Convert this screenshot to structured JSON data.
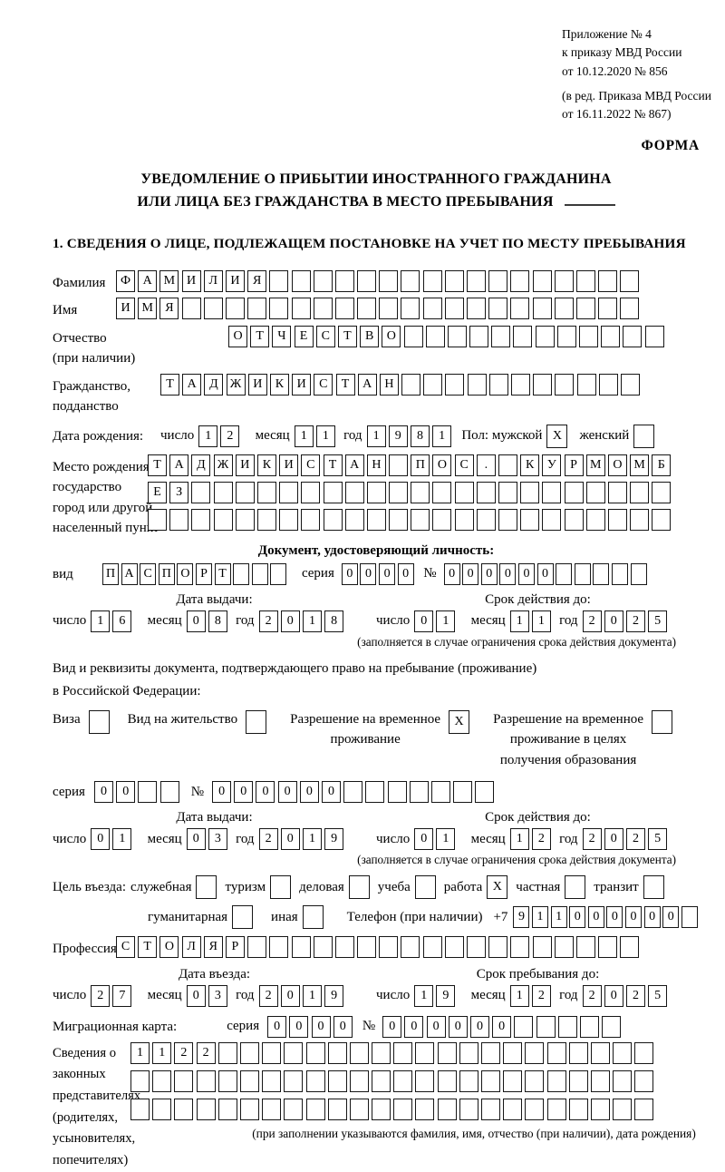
{
  "meta": {
    "annex": [
      "Приложение № 4",
      "к приказу МВД России",
      "от 10.12.2020 № 856"
    ],
    "annex_edit": [
      "(в ред. Приказа МВД России",
      "от 16.11.2022 № 867)"
    ],
    "form_word": "ФОРМА"
  },
  "title": {
    "line1": "УВЕДОМЛЕНИЕ О ПРИБЫТИИ ИНОСТРАННОГО ГРАЖДАНИНА",
    "line2": "ИЛИ ЛИЦА БЕЗ ГРАЖДАНСТВА В МЕСТО ПРЕБЫВАНИЯ"
  },
  "common": {
    "day_label": "число",
    "month_label": "месяц",
    "year_label": "год"
  },
  "section1": {
    "heading": "1. СВЕДЕНИЯ О ЛИЦЕ, ПОДЛЕЖАЩЕМ ПОСТАНОВКЕ НА УЧЕТ ПО МЕСТУ ПРЕБЫВАНИЯ"
  },
  "fields": {
    "surname": {
      "label": "Фамилия",
      "cells": {
        "t": "ФАМИЛИЯ",
        "n": 24
      }
    },
    "firstname": {
      "label": "Имя",
      "cells": {
        "t": "ИМЯ",
        "n": 24
      }
    },
    "patronymic": {
      "label": "Отчество",
      "note": "(при наличии)",
      "cells": {
        "t": "ОТЧЕСТВО",
        "n": 20
      }
    },
    "citizenship": {
      "label1": "Гражданство,",
      "label2": "подданство",
      "cells": {
        "t": "ТАДЖИКИСТАН",
        "n": 22
      }
    },
    "birth": {
      "label": "Дата рождения:",
      "day": {
        "t": "12",
        "n": 2
      },
      "month": {
        "t": "11",
        "n": 2
      },
      "year": {
        "t": "1981",
        "n": 4
      },
      "sex_label": "Пол: мужской",
      "male_box": {
        "t": "X",
        "n": 1
      },
      "female_label": "женский",
      "female_box": {
        "t": "",
        "n": 1
      }
    },
    "birthplace": {
      "label1": "Место рождения:",
      "label2": "государство",
      "label3": "город или другой",
      "label4": "населенный пункт",
      "row1": {
        "t": "ТАДЖИКИСТАН ПОС. КУРМОМБ",
        "n": 24
      },
      "row2": {
        "t": "ЕЗ",
        "n": 24
      },
      "row3": {
        "t": "",
        "n": 24
      }
    }
  },
  "iddoc": {
    "heading": "Документ, удостоверяющий личность:",
    "type_label": "вид",
    "type": {
      "t": "ПАСПОРТ",
      "n": 10
    },
    "series_label": "серия",
    "series": {
      "t": "0000",
      "n": 4
    },
    "num_label": "№",
    "number": {
      "t": "000000",
      "n": 11
    },
    "issue_label": "Дата выдачи:",
    "issue": {
      "day": {
        "t": "16",
        "n": 2
      },
      "month": {
        "t": "08",
        "n": 2
      },
      "year": {
        "t": "2018",
        "n": 4
      }
    },
    "valid_label": "Срок действия до:",
    "valid": {
      "day": {
        "t": "01",
        "n": 2
      },
      "month": {
        "t": "11",
        "n": 2
      },
      "year": {
        "t": "2025",
        "n": 4
      }
    },
    "note": "(заполняется в случае ограничения срока действия документа)"
  },
  "permit": {
    "line1": "Вид и реквизиты документа, подтверждающего право на пребывание (проживание)",
    "line2": "в Российской Федерации:",
    "visa_label": "Виза",
    "visa_box": {
      "t": "",
      "n": 1
    },
    "residence_label": "Вид на жительство",
    "residence_box": {
      "t": "",
      "n": 1
    },
    "rvp_line1": "Разрешение на временное",
    "rvp_line2": "проживание",
    "rvp_box": {
      "t": "X",
      "n": 1
    },
    "edu_line1": "Разрешение на временное",
    "edu_line2": "проживание в целях",
    "edu_line3": "получения образования",
    "edu_box": {
      "t": "",
      "n": 1
    },
    "series_label": "серия",
    "series": {
      "t": "00",
      "n": 4
    },
    "num_label": "№",
    "number": {
      "t": "000000",
      "n": 13
    },
    "issue_label": "Дата выдачи:",
    "issue": {
      "day": {
        "t": "01",
        "n": 2
      },
      "month": {
        "t": "03",
        "n": 2
      },
      "year": {
        "t": "2019",
        "n": 4
      }
    },
    "valid_label": "Срок действия до:",
    "valid": {
      "day": {
        "t": "01",
        "n": 2
      },
      "month": {
        "t": "12",
        "n": 2
      },
      "year": {
        "t": "2025",
        "n": 4
      }
    },
    "note": "(заполняется в случае ограничения срока действия документа)"
  },
  "purpose": {
    "label": "Цель въезда:",
    "options": [
      {
        "label": "служебная",
        "box": {
          "t": "",
          "n": 1
        }
      },
      {
        "label": "туризм",
        "box": {
          "t": "",
          "n": 1
        }
      },
      {
        "label": "деловая",
        "box": {
          "t": "",
          "n": 1
        }
      },
      {
        "label": "учеба",
        "box": {
          "t": "",
          "n": 1
        }
      },
      {
        "label": "работа",
        "box": {
          "t": "X",
          "n": 1
        }
      },
      {
        "label": "частная",
        "box": {
          "t": "",
          "n": 1
        }
      },
      {
        "label": "транзит",
        "box": {
          "t": "",
          "n": 1
        }
      }
    ],
    "options2": [
      {
        "label": "гуманитарная",
        "box": {
          "t": "",
          "n": 1
        }
      },
      {
        "label": "иная",
        "box": {
          "t": "",
          "n": 1
        }
      }
    ],
    "phone_label": "Телефон (при наличии)",
    "phone_prefix": "+7",
    "phone": {
      "t": "911000000",
      "n": 10
    }
  },
  "profession": {
    "label": "Профессия",
    "cells": {
      "t": "СТОЛЯР",
      "n": 24
    }
  },
  "entry": {
    "date_label": "Дата въезда:",
    "date": {
      "day": {
        "t": "27",
        "n": 2
      },
      "month": {
        "t": "03",
        "n": 2
      },
      "year": {
        "t": "2019",
        "n": 4
      }
    },
    "until_label": "Срок пребывания до:",
    "until": {
      "day": {
        "t": "19",
        "n": 2
      },
      "month": {
        "t": "12",
        "n": 2
      },
      "year": {
        "t": "2025",
        "n": 4
      }
    }
  },
  "migcard": {
    "label": "Миграционная карта:",
    "series_label": "серия",
    "series": {
      "t": "0000",
      "n": 4
    },
    "num_label": "№",
    "number": {
      "t": "000000",
      "n": 11
    }
  },
  "reps": {
    "label_lines": [
      "Сведения о",
      "законных",
      "представителях",
      "(родителях,",
      "усыновителях,",
      "попечителях)"
    ],
    "row1": {
      "t": "1122",
      "n": 24
    },
    "row2": {
      "t": "",
      "n": 24
    },
    "row3": {
      "t": "",
      "n": 24
    },
    "caption": "(при заполнении указываются фамилия, имя, отчество (при наличии), дата рождения)"
  }
}
